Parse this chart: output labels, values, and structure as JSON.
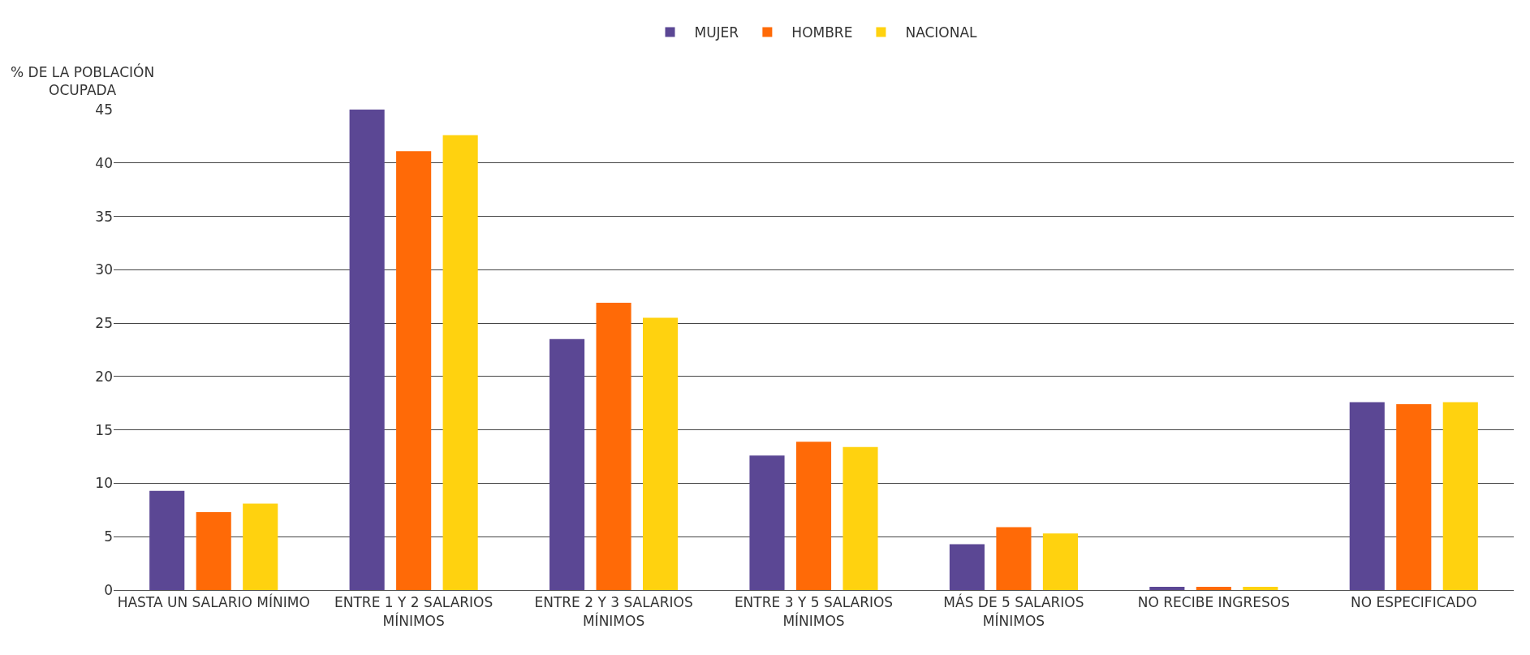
{
  "chart_data": {
    "type": "bar",
    "ylabel": "% DE LA POBLACIÓN OCUPADA",
    "categories": [
      "HASTA UN SALARIO MÍNIMO",
      "ENTRE 1 Y 2 SALARIOS MÍNIMOS",
      "ENTRE 2 Y 3 SALARIOS MÍNIMOS",
      "ENTRE 3 Y 5 SALARIOS MÍNIMOS",
      "MÁS DE 5 SALARIOS MÍNIMOS",
      "NO RECIBE INGRESOS",
      "NO ESPECIFICADO"
    ],
    "series": [
      {
        "name": "MUJER",
        "color": "#5b4794",
        "values": [
          9.3,
          45,
          23.5,
          12.6,
          4.3,
          0.3,
          17.6
        ]
      },
      {
        "name": "HOMBRE",
        "color": "#ff6a07",
        "values": [
          7.3,
          41.1,
          26.9,
          13.9,
          5.9,
          0.3,
          17.4
        ]
      },
      {
        "name": "NACIONAL",
        "color": "#ffd20f",
        "values": [
          8.1,
          42.6,
          25.5,
          13.4,
          5.3,
          0.3,
          17.6
        ]
      }
    ],
    "ylim": [
      0,
      45
    ],
    "yticks": [
      0,
      5,
      10,
      15,
      20,
      25,
      30,
      35,
      40,
      45
    ],
    "grid": "y",
    "legend": "top"
  }
}
